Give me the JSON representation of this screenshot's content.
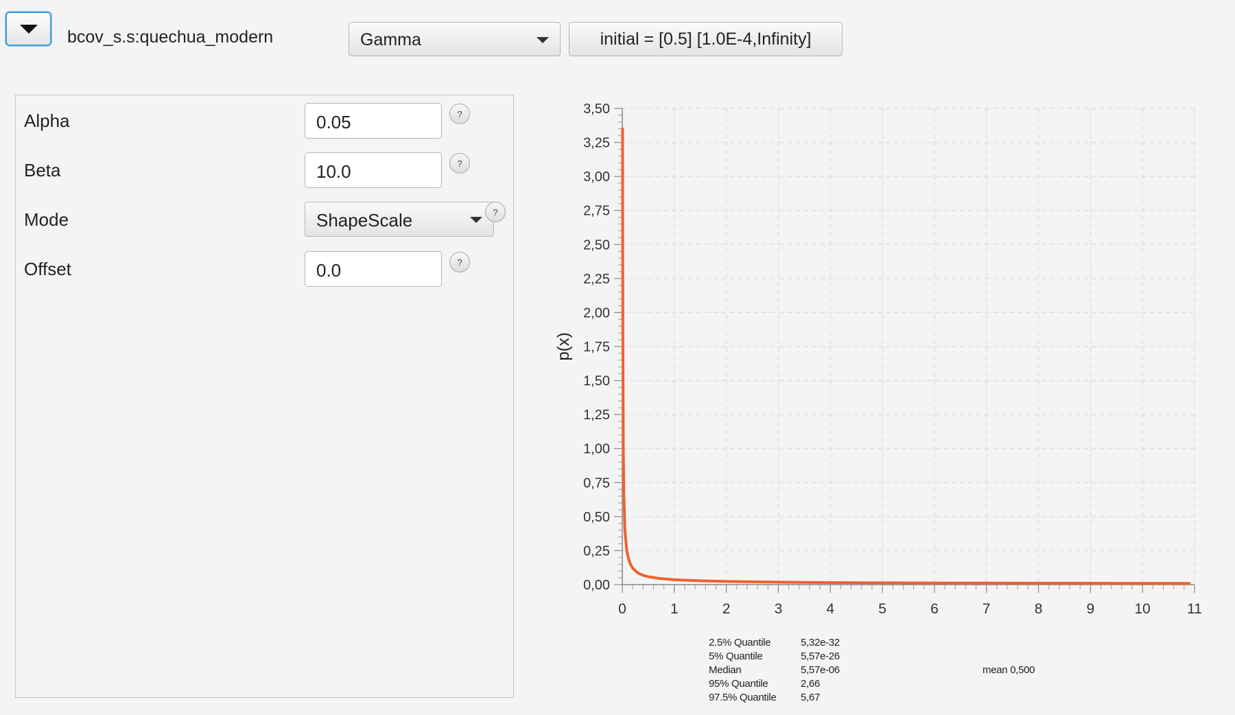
{
  "header": {
    "parameter_name": "bcov_s.s:quechua_modern",
    "distribution": "Gamma",
    "initial_label": "initial = [0.5] [1.0E-4,Infinity]"
  },
  "params": {
    "alpha": {
      "label": "Alpha",
      "value": "0.05"
    },
    "beta": {
      "label": "Beta",
      "value": "10.0"
    },
    "mode": {
      "label": "Mode",
      "value": "ShapeScale"
    },
    "offset": {
      "label": "Offset",
      "value": "0.0"
    },
    "help_glyph": "?"
  },
  "chart_data": {
    "type": "line",
    "ylabel": "p(x)",
    "xlabel": "",
    "xlim": [
      0,
      11
    ],
    "ylim": [
      0,
      3.5
    ],
    "grid": true,
    "x_ticks": [
      "0",
      "1",
      "2",
      "3",
      "4",
      "5",
      "6",
      "7",
      "8",
      "9",
      "10",
      "11"
    ],
    "y_ticks": [
      "0,00",
      "0,25",
      "0,50",
      "0,75",
      "1,00",
      "1,25",
      "1,50",
      "1,75",
      "2,00",
      "2,25",
      "2,50",
      "2,75",
      "3,00",
      "3,25",
      "3,50"
    ],
    "series": [
      {
        "color": "#f0602e",
        "x": [
          0.005,
          0.01,
          0.02,
          0.03,
          0.05,
          0.08,
          0.1,
          0.15,
          0.2,
          0.3,
          0.4,
          0.5,
          0.7,
          1.0,
          1.5,
          2.0,
          3.0,
          4.0,
          5.0,
          6.0,
          7.0,
          8.0,
          9.0,
          10.0,
          10.9
        ],
        "y": [
          3.35,
          1.9,
          0.98,
          0.66,
          0.4,
          0.27,
          0.22,
          0.155,
          0.12,
          0.085,
          0.068,
          0.058,
          0.046,
          0.036,
          0.028,
          0.023,
          0.018,
          0.015,
          0.013,
          0.012,
          0.011,
          0.0105,
          0.01,
          0.0095,
          0.009
        ]
      }
    ]
  },
  "stats": {
    "rows": [
      {
        "label": "2.5% Quantile",
        "value": "5,32e-32"
      },
      {
        "label": "5% Quantile",
        "value": "5,57e-26"
      },
      {
        "label": "Median",
        "value": "5,57e-06"
      },
      {
        "label": "95% Quantile",
        "value": "2,66"
      },
      {
        "label": "97.5% Quantile",
        "value": "5,67"
      }
    ],
    "mean": "mean 0,500"
  }
}
